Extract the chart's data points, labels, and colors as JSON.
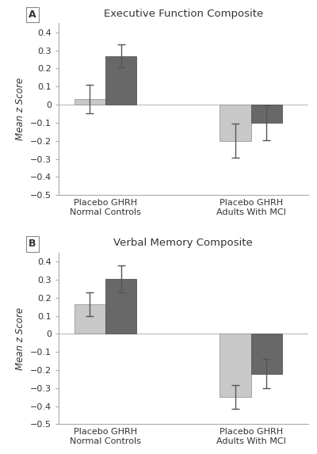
{
  "panel_A": {
    "title": "Executive Function Composite",
    "label": "A",
    "group_xlabels": [
      "Placebo GHRH\nNormal Controls",
      "Placebo GHRH\nAdults With MCI"
    ],
    "placebo_values": [
      0.03,
      -0.2
    ],
    "ghrh_values": [
      0.27,
      -0.1
    ],
    "placebo_errors": [
      0.08,
      0.095
    ],
    "ghrh_errors": [
      0.065,
      0.095
    ],
    "ylim": [
      -0.5,
      0.45
    ],
    "yticks": [
      -0.5,
      -0.4,
      -0.3,
      -0.2,
      -0.1,
      0.0,
      0.1,
      0.2,
      0.3,
      0.4
    ],
    "ylabel": "Mean z Score"
  },
  "panel_B": {
    "title": "Verbal Memory Composite",
    "label": "B",
    "group_xlabels": [
      "Placebo GHRH\nNormal Controls",
      "Placebo GHRH\nAdults With MCI"
    ],
    "placebo_values": [
      0.165,
      -0.35
    ],
    "ghrh_values": [
      0.305,
      -0.22
    ],
    "placebo_errors": [
      0.065,
      0.065
    ],
    "ghrh_errors": [
      0.075,
      0.08
    ],
    "ylim": [
      -0.5,
      0.45
    ],
    "yticks": [
      -0.5,
      -0.4,
      -0.3,
      -0.2,
      -0.1,
      0.0,
      0.1,
      0.2,
      0.3,
      0.4
    ],
    "ylabel": "Mean z Score"
  },
  "color_placebo": "#c8c8c8",
  "color_ghrh": "#686868",
  "bar_width": 0.3,
  "group_positions": [
    1.0,
    2.4
  ],
  "figure_bgcolor": "#ffffff",
  "axes_bgcolor": "#ffffff",
  "errorbar_color": "#555555",
  "spine_color": "#aaaaaa",
  "text_color": "#333333"
}
